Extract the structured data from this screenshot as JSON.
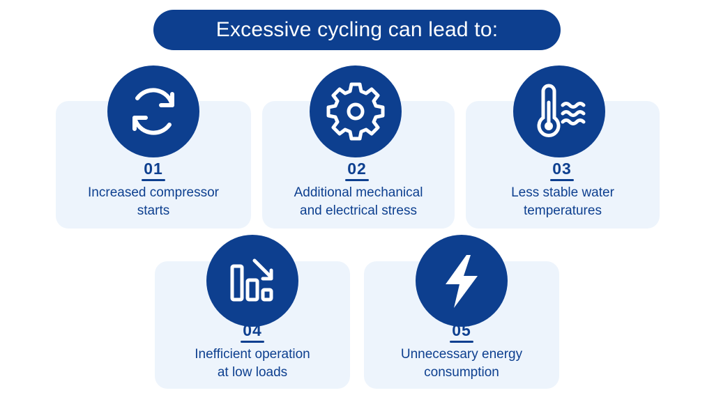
{
  "title": "Excessive cycling can lead to:",
  "colors": {
    "primary": "#0d3f8f",
    "card": "#edf4fc",
    "text": "#0d3f8f"
  },
  "items": [
    {
      "number": "01",
      "icon": "refresh-cycle-icon",
      "line1": "Increased compressor",
      "line2": "starts"
    },
    {
      "number": "02",
      "icon": "gear-icon",
      "line1": "Additional mechanical",
      "line2": "and electrical stress"
    },
    {
      "number": "03",
      "icon": "thermometer-water-icon",
      "line1": "Less stable water",
      "line2": "temperatures"
    },
    {
      "number": "04",
      "icon": "declining-bar-chart-icon",
      "line1": "Inefficient operation",
      "line2": "at low loads"
    },
    {
      "number": "05",
      "icon": "lightning-bolt-icon",
      "line1": "Unnecessary energy",
      "line2": "consumption"
    }
  ]
}
